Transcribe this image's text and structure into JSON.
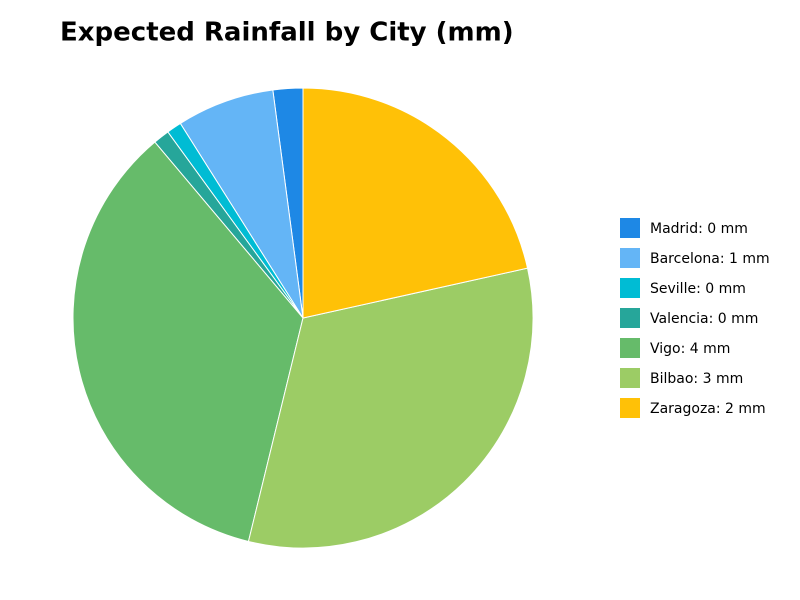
{
  "chart_data": {
    "type": "pie",
    "title": "Expected Rainfall by City (mm)",
    "categories": [
      "Madrid: 0 mm",
      "Barcelona: 1 mm",
      "Seville: 0 mm",
      "Valencia: 0 mm",
      "Vigo: 4 mm",
      "Bilbao: 3 mm",
      "Zaragoza: 2 mm"
    ],
    "values": [
      0.22,
      0.72,
      0.11,
      0.12,
      3.68,
      3.39,
      2.26
    ],
    "colors": [
      "#1e88e5",
      "#64b5f6",
      "#00bcd4",
      "#26a69a",
      "#66bb6a",
      "#9ccc65",
      "#ffc107"
    ],
    "legend": "right"
  }
}
